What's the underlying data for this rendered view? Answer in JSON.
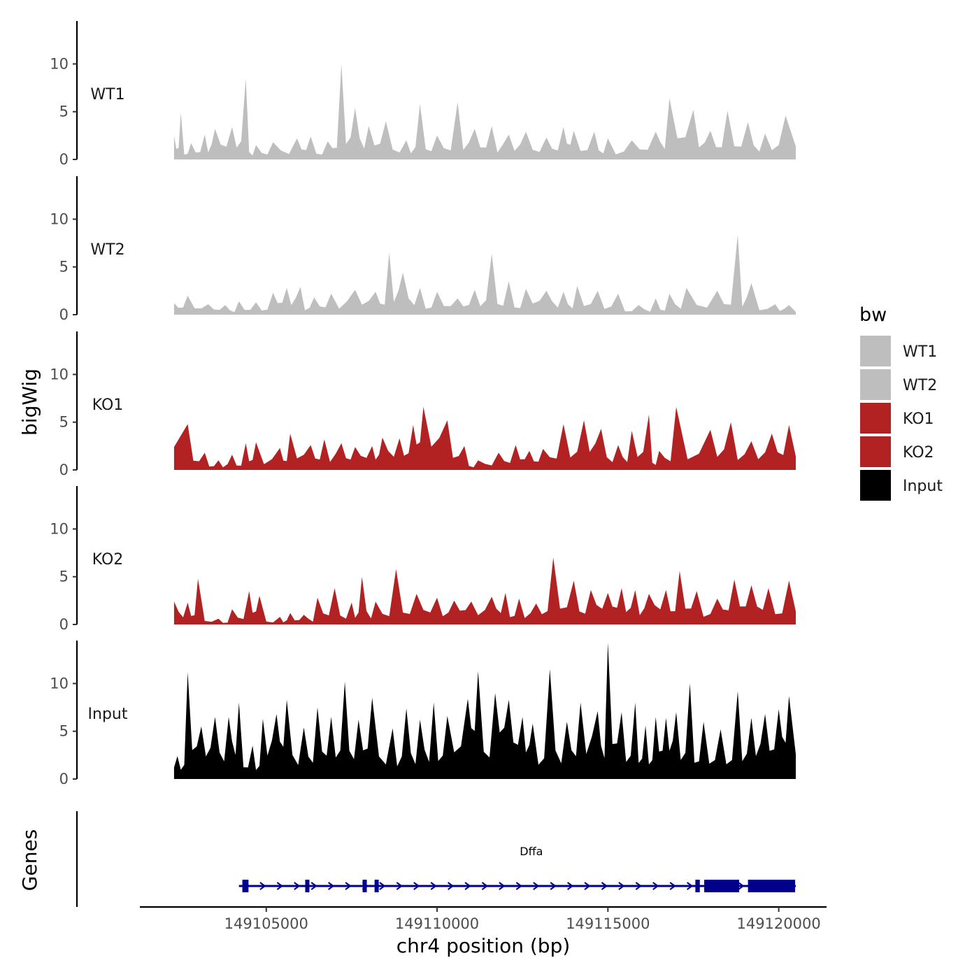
{
  "chart_data": {
    "type": "area",
    "title": "",
    "xlabel": "chr4 position (bp)",
    "ylabel": "bigWig",
    "genes_label": "Genes",
    "xlim": [
      149101300,
      149121400
    ],
    "ylim": [
      0,
      14.5
    ],
    "x_ticks": [
      149105000,
      149110000,
      149115000,
      149120000
    ],
    "x_tick_labels": [
      "149105000",
      "149110000",
      "149115000",
      "149120000"
    ],
    "y_ticks": [
      0,
      5,
      10
    ],
    "y_tick_labels": [
      "0",
      "5",
      "10"
    ],
    "legend": {
      "title": "bw",
      "position": "right",
      "entries": [
        {
          "label": "WT1",
          "color": "#bebebe"
        },
        {
          "label": "WT2",
          "color": "#bebebe"
        },
        {
          "label": "KO1",
          "color": "#b22222"
        },
        {
          "label": "KO2",
          "color": "#b22222"
        },
        {
          "label": "Input",
          "color": "#000000"
        }
      ]
    },
    "series": [
      {
        "name": "WT1",
        "color": "#bebebe",
        "peaks": [
          [
            149102300,
            2.5
          ],
          [
            149102500,
            4.9
          ],
          [
            149102800,
            1.7
          ],
          [
            149103200,
            2.6
          ],
          [
            149103500,
            3.2
          ],
          [
            149104000,
            3.4
          ],
          [
            149104400,
            8.5
          ],
          [
            149104700,
            1.5
          ],
          [
            149105200,
            1.8
          ],
          [
            149105900,
            2.2
          ],
          [
            149106300,
            2.4
          ],
          [
            149106800,
            1.9
          ],
          [
            149107200,
            10.0
          ],
          [
            149107600,
            5.4
          ],
          [
            149108000,
            3.5
          ],
          [
            149108500,
            4.0
          ],
          [
            149109100,
            2.0
          ],
          [
            149109500,
            5.8
          ],
          [
            149110000,
            2.5
          ],
          [
            149110600,
            6.0
          ],
          [
            149111100,
            3.2
          ],
          [
            149111600,
            3.5
          ],
          [
            149112100,
            2.6
          ],
          [
            149112600,
            2.9
          ],
          [
            149113200,
            2.3
          ],
          [
            149113700,
            3.4
          ],
          [
            149114000,
            3.0
          ],
          [
            149114600,
            2.9
          ],
          [
            149115000,
            2.2
          ],
          [
            149115700,
            2.0
          ],
          [
            149116400,
            2.9
          ],
          [
            149116800,
            6.4
          ],
          [
            149117500,
            5.2
          ],
          [
            149118000,
            3.0
          ],
          [
            149118500,
            5.1
          ],
          [
            149119100,
            3.9
          ],
          [
            149119600,
            2.7
          ],
          [
            149120200,
            4.6
          ]
        ]
      },
      {
        "name": "WT2",
        "color": "#bebebe",
        "peaks": [
          [
            149102300,
            1.2
          ],
          [
            149102700,
            2.0
          ],
          [
            149103300,
            1.1
          ],
          [
            149103800,
            1.0
          ],
          [
            149104200,
            1.4
          ],
          [
            149104700,
            1.3
          ],
          [
            149105200,
            2.3
          ],
          [
            149105600,
            2.8
          ],
          [
            149106000,
            2.9
          ],
          [
            149106400,
            1.8
          ],
          [
            149106900,
            2.2
          ],
          [
            149107600,
            2.6
          ],
          [
            149108200,
            2.4
          ],
          [
            149108600,
            6.5
          ],
          [
            149109000,
            4.4
          ],
          [
            149109500,
            2.8
          ],
          [
            149110000,
            2.4
          ],
          [
            149110600,
            1.7
          ],
          [
            149111100,
            2.6
          ],
          [
            149111600,
            6.4
          ],
          [
            149112100,
            3.5
          ],
          [
            149112600,
            2.7
          ],
          [
            149113200,
            2.5
          ],
          [
            149113700,
            2.4
          ],
          [
            149114100,
            3.0
          ],
          [
            149114700,
            2.5
          ],
          [
            149115300,
            2.2
          ],
          [
            149115900,
            1.0
          ],
          [
            149116400,
            1.7
          ],
          [
            149116800,
            2.2
          ],
          [
            149117300,
            2.8
          ],
          [
            149118200,
            2.5
          ],
          [
            149118800,
            8.4
          ],
          [
            149119200,
            3.3
          ],
          [
            149119900,
            1.1
          ],
          [
            149120300,
            1.0
          ]
        ]
      },
      {
        "name": "KO1",
        "color": "#b22222",
        "peaks": [
          [
            149102700,
            4.8
          ],
          [
            149103200,
            1.8
          ],
          [
            149103600,
            1.0
          ],
          [
            149104000,
            1.6
          ],
          [
            149104400,
            2.8
          ],
          [
            149104700,
            2.9
          ],
          [
            149105400,
            2.3
          ],
          [
            149105700,
            3.8
          ],
          [
            149106300,
            2.6
          ],
          [
            149106700,
            3.2
          ],
          [
            149107200,
            2.8
          ],
          [
            149107600,
            2.4
          ],
          [
            149108100,
            2.5
          ],
          [
            149108400,
            3.4
          ],
          [
            149108900,
            3.3
          ],
          [
            149109300,
            4.7
          ],
          [
            149109600,
            6.6
          ],
          [
            149110300,
            5.2
          ],
          [
            149110800,
            2.5
          ],
          [
            149111200,
            1.0
          ],
          [
            149111800,
            1.8
          ],
          [
            149112300,
            2.6
          ],
          [
            149112700,
            2.0
          ],
          [
            149113100,
            2.2
          ],
          [
            149113700,
            4.8
          ],
          [
            149114300,
            5.2
          ],
          [
            149114800,
            4.3
          ],
          [
            149115300,
            2.6
          ],
          [
            149115700,
            4.1
          ],
          [
            149116200,
            5.8
          ],
          [
            149116500,
            2.0
          ],
          [
            149117000,
            6.6
          ],
          [
            149118000,
            4.2
          ],
          [
            149118600,
            5.0
          ],
          [
            149119200,
            3.0
          ],
          [
            149119800,
            3.8
          ],
          [
            149120300,
            4.7
          ]
        ]
      },
      {
        "name": "KO2",
        "color": "#b22222",
        "peaks": [
          [
            149102300,
            2.4
          ],
          [
            149102700,
            2.3
          ],
          [
            149103000,
            4.8
          ],
          [
            149103600,
            0.6
          ],
          [
            149104000,
            1.6
          ],
          [
            149104500,
            3.5
          ],
          [
            149104800,
            3.0
          ],
          [
            149105400,
            0.8
          ],
          [
            149105700,
            1.2
          ],
          [
            149106100,
            1.0
          ],
          [
            149106500,
            2.8
          ],
          [
            149107000,
            3.8
          ],
          [
            149107500,
            2.3
          ],
          [
            149107800,
            5.0
          ],
          [
            149108200,
            2.4
          ],
          [
            149108800,
            5.8
          ],
          [
            149109400,
            3.2
          ],
          [
            149110000,
            2.8
          ],
          [
            149110500,
            2.5
          ],
          [
            149111000,
            2.4
          ],
          [
            149111600,
            2.9
          ],
          [
            149112000,
            3.3
          ],
          [
            149112400,
            2.7
          ],
          [
            149112900,
            2.2
          ],
          [
            149113400,
            7.0
          ],
          [
            149114000,
            4.6
          ],
          [
            149114500,
            3.6
          ],
          [
            149115000,
            3.3
          ],
          [
            149115400,
            3.8
          ],
          [
            149115800,
            3.6
          ],
          [
            149116200,
            3.2
          ],
          [
            149116700,
            3.6
          ],
          [
            149117100,
            5.6
          ],
          [
            149117600,
            3.5
          ],
          [
            149118200,
            2.7
          ],
          [
            149118700,
            4.7
          ],
          [
            149119200,
            4.1
          ],
          [
            149119700,
            3.8
          ],
          [
            149120300,
            4.6
          ]
        ]
      },
      {
        "name": "Input",
        "color": "#000000",
        "peaks": [
          [
            149102400,
            2.4
          ],
          [
            149102700,
            11.2
          ],
          [
            149103100,
            5.5
          ],
          [
            149103500,
            6.5
          ],
          [
            149103900,
            6.5
          ],
          [
            149104200,
            8.0
          ],
          [
            149104600,
            3.5
          ],
          [
            149104900,
            6.3
          ],
          [
            149105300,
            6.8
          ],
          [
            149105600,
            8.3
          ],
          [
            149106100,
            5.4
          ],
          [
            149106500,
            7.5
          ],
          [
            149106900,
            6.5
          ],
          [
            149107300,
            10.2
          ],
          [
            149107700,
            6.2
          ],
          [
            149108100,
            8.5
          ],
          [
            149108700,
            5.3
          ],
          [
            149109100,
            7.4
          ],
          [
            149109500,
            6.2
          ],
          [
            149109900,
            8.0
          ],
          [
            149110300,
            6.6
          ],
          [
            149110900,
            8.4
          ],
          [
            149111200,
            11.3
          ],
          [
            149111700,
            9.0
          ],
          [
            149112100,
            8.3
          ],
          [
            149112500,
            6.5
          ],
          [
            149112800,
            5.8
          ],
          [
            149113300,
            11.5
          ],
          [
            149113800,
            6.0
          ],
          [
            149114200,
            8.0
          ],
          [
            149114700,
            7.1
          ],
          [
            149115000,
            14.3
          ],
          [
            149115400,
            7.0
          ],
          [
            149115800,
            8.0
          ],
          [
            149116100,
            5.6
          ],
          [
            149116400,
            6.5
          ],
          [
            149116700,
            6.4
          ],
          [
            149117000,
            7.0
          ],
          [
            149117400,
            10.0
          ],
          [
            149117800,
            6.0
          ],
          [
            149118300,
            5.2
          ],
          [
            149118800,
            9.2
          ],
          [
            149119200,
            6.4
          ],
          [
            149119600,
            6.8
          ],
          [
            149120000,
            7.3
          ],
          [
            149120300,
            8.7
          ]
        ]
      }
    ],
    "gene": {
      "name": "Dffa",
      "strand": "+",
      "start": 149104200,
      "end": 149120500,
      "exons": [
        [
          149104300,
          149104480
        ],
        [
          149106140,
          149106230
        ],
        [
          149107820,
          149107930
        ],
        [
          149108170,
          149108260
        ],
        [
          149117560,
          149117690
        ],
        [
          149117820,
          149118840
        ],
        [
          149119100,
          149120480
        ]
      ]
    }
  }
}
